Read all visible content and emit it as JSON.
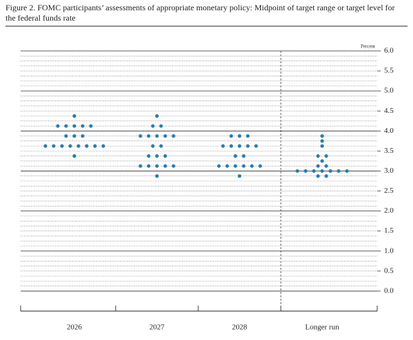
{
  "chart_data": {
    "type": "dot",
    "title": "Figure 2. FOMC participants’ assessments of appropriate monetary policy: Midpoint of target range or target level for the federal funds rate",
    "y_label": "Percent",
    "categories": [
      "2026",
      "2027",
      "2028",
      "Longer run"
    ],
    "values": [
      [
        4.375,
        4.125,
        4.125,
        4.125,
        4.125,
        4.125,
        3.875,
        3.875,
        3.875,
        3.625,
        3.625,
        3.625,
        3.625,
        3.625,
        3.625,
        3.625,
        3.625,
        3.375
      ],
      [
        4.375,
        4.125,
        4.125,
        3.875,
        3.875,
        3.875,
        3.875,
        3.875,
        3.625,
        3.625,
        3.375,
        3.375,
        3.375,
        3.125,
        3.125,
        3.125,
        3.125,
        3.125,
        2.875
      ],
      [
        3.875,
        3.875,
        3.875,
        3.625,
        3.625,
        3.625,
        3.625,
        3.625,
        3.375,
        3.375,
        3.125,
        3.125,
        3.125,
        3.125,
        3.125,
        3.125,
        2.875
      ],
      [
        3.875,
        3.75,
        3.625,
        3.375,
        3.375,
        3.25,
        3.125,
        3.125,
        3,
        3,
        3,
        3,
        3,
        3,
        3,
        2.875,
        2.875
      ]
    ],
    "color": "#2a7db0",
    "ylim": [
      -0.5,
      6
    ],
    "yticks": [
      {
        "value": 0,
        "label": "0.0"
      },
      {
        "value": 0.5,
        "label": "0.5"
      },
      {
        "value": 1,
        "label": "1.0"
      },
      {
        "value": 1.5,
        "label": "1.5"
      },
      {
        "value": 2,
        "label": "2.0"
      },
      {
        "value": 2.5,
        "label": "2.5"
      },
      {
        "value": 3,
        "label": "3.0"
      },
      {
        "value": 3.5,
        "label": "3.5"
      },
      {
        "value": 4,
        "label": "4.0"
      },
      {
        "value": 4.5,
        "label": "4.5"
      },
      {
        "value": 5,
        "label": "5.0"
      },
      {
        "value": 5.5,
        "label": "5.5"
      },
      {
        "value": 6,
        "label": "6.0"
      }
    ],
    "minor_step": 0.125,
    "grid": true
  }
}
